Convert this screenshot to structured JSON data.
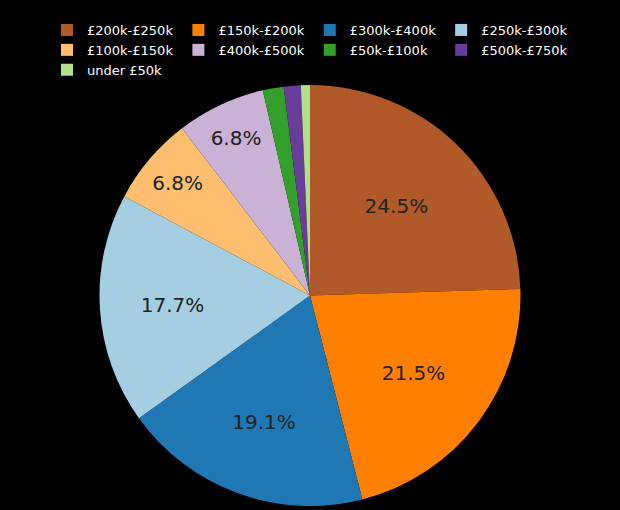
{
  "chart_data": {
    "type": "pie",
    "categories": [
      "£200k-£250k",
      "£150k-£200k",
      "£300k-£400k",
      "£250k-£300k",
      "£100k-£150k",
      "£400k-£500k",
      "£50k-£100k",
      "£500k-£750k",
      "under £50k"
    ],
    "values": [
      24.5,
      21.5,
      19.1,
      17.7,
      6.8,
      6.8,
      1.6,
      1.3,
      0.7
    ],
    "value_labels": [
      "24.5%",
      "21.5%",
      "19.1%",
      "17.7%",
      "6.8%",
      "6.8%",
      null,
      null,
      null
    ],
    "colors": [
      "#b15928",
      "#ff7f00",
      "#1f78b4",
      "#a6cee3",
      "#fdbf6f",
      "#cab2d6",
      "#33a02c",
      "#6a3d9a",
      "#b2df8a"
    ],
    "data_labels": true,
    "legend": "top"
  }
}
